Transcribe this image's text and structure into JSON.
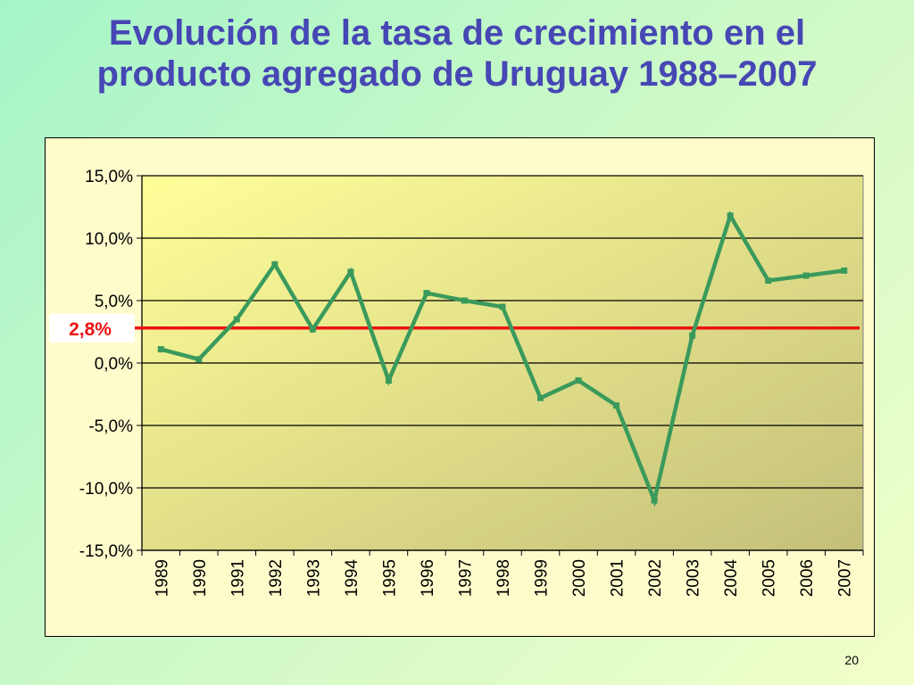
{
  "slide": {
    "title_line1": "Evolución de la tasa de crecimiento en el",
    "title_line2": "producto agregado de Uruguay 1988–2007",
    "page_number": "20"
  },
  "colors": {
    "title": "#4646b4",
    "series_line": "#3a9a5c",
    "reference_line": "#ee1111",
    "plot_gradient_start": "#ffff99",
    "plot_gradient_end": "#c3bf7a"
  },
  "chart_data": {
    "type": "line",
    "title": "",
    "xlabel": "",
    "ylabel": "",
    "categories": [
      "1989",
      "1990",
      "1991",
      "1992",
      "1993",
      "1994",
      "1995",
      "1996",
      "1997",
      "1998",
      "1999",
      "2000",
      "2001",
      "2002",
      "2003",
      "2004",
      "2005",
      "2006",
      "2007"
    ],
    "series": [
      {
        "values": [
          1.1,
          0.3,
          3.5,
          7.9,
          2.7,
          7.3,
          -1.4,
          5.6,
          5.0,
          4.5,
          -2.8,
          -1.4,
          -3.4,
          -11.0,
          2.2,
          11.8,
          6.6,
          7.0,
          7.4
        ]
      }
    ],
    "reference_line": {
      "value": 2.8,
      "label": "2,8%"
    },
    "ylim": [
      -15,
      15
    ],
    "yticks": [
      15,
      10,
      5,
      0,
      -5,
      -10,
      -15
    ],
    "ytick_labels": [
      "15,0%",
      "10,0%",
      "5,0%",
      "0,0%",
      "-5,0%",
      "-10,0%",
      "-15,0%"
    ],
    "grid": true,
    "legend": "none"
  }
}
